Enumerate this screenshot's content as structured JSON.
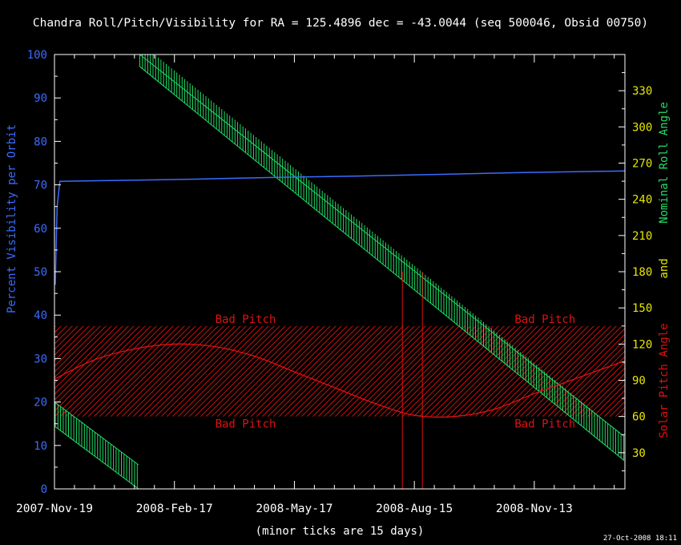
{
  "colors": {
    "background": "#000000",
    "title": "#ffffff",
    "frame": "#ffffff",
    "visibility": "#3a6cff",
    "roll": "#22dd66",
    "pitch": "#e01010",
    "right_axis_ticks": "#e6e600"
  },
  "chart_data": {
    "type": "line",
    "title": "Chandra Roll/Pitch/Visibility for RA = 125.4896 dec = -43.0044 (seq 500046, Obsid 00750)",
    "xlabel": "(minor ticks are 15 days)",
    "ylabel_left": "Percent Visibility per Orbit",
    "ylabel_right": {
      "part1": "Nominal Roll Angle",
      "part2": "and",
      "part3": "Solar Pitch Angle"
    },
    "footer_timestamp": "27-Oct-2008 18:11",
    "x_range": [
      "2007-11-19",
      "2009-01-20"
    ],
    "x_ticks": [
      "2007-Nov-19",
      "2008-Feb-17",
      "2008-May-17",
      "2008-Aug-15",
      "2008-Nov-13"
    ],
    "minor_tick_days": 15,
    "ylim_left": [
      0,
      100
    ],
    "yticks_left": [
      0,
      10,
      20,
      30,
      40,
      50,
      60,
      70,
      80,
      90,
      100
    ],
    "ylim_right": [
      0,
      360
    ],
    "yticks_right": [
      30,
      60,
      90,
      120,
      150,
      180,
      210,
      240,
      270,
      300,
      330
    ],
    "bad_pitch_region": {
      "pitch_range": [
        60,
        135
      ],
      "labels": [
        "Bad Pitch",
        "Bad Pitch",
        "Bad Pitch",
        "Bad Pitch"
      ]
    },
    "observation_window": [
      "2008-08-06",
      "2008-08-21"
    ],
    "series": [
      {
        "axis": "left",
        "x": [
          "2007-11-19",
          "2007-11-21",
          "2007-11-23",
          "2008-01-01",
          "2008-03-01",
          "2008-05-01",
          "2008-07-01",
          "2008-09-01",
          "2008-11-01",
          "2009-01-01",
          "2009-01-20"
        ],
        "y": [
          47,
          65,
          70.8,
          71,
          71.3,
          71.7,
          72.0,
          72.4,
          72.8,
          73.1,
          73.2
        ]
      },
      {
        "axis": "right",
        "x": [
          "2007-11-19",
          "2007-12-19",
          "2008-01-18",
          "2008-02-17",
          "2008-03-18",
          "2008-04-17",
          "2008-05-17",
          "2008-06-16",
          "2008-07-16",
          "2008-08-15",
          "2008-09-14",
          "2008-10-14",
          "2008-11-13",
          "2008-12-13",
          "2009-01-12",
          "2009-01-20"
        ],
        "y": [
          91,
          107,
          116,
          120,
          118,
          110,
          97,
          84,
          71,
          61,
          60,
          66,
          79,
          91,
          103,
          106
        ]
      },
      {
        "axis": "right",
        "segments": [
          {
            "x": [
              "2007-11-19",
              "2008-01-21"
            ],
            "y": [
              62,
              10
            ]
          },
          {
            "x": [
              "2008-01-22",
              "2009-01-20"
            ],
            "y": [
              360,
              33
            ]
          }
        ],
        "error_half_width": 10
      }
    ]
  }
}
